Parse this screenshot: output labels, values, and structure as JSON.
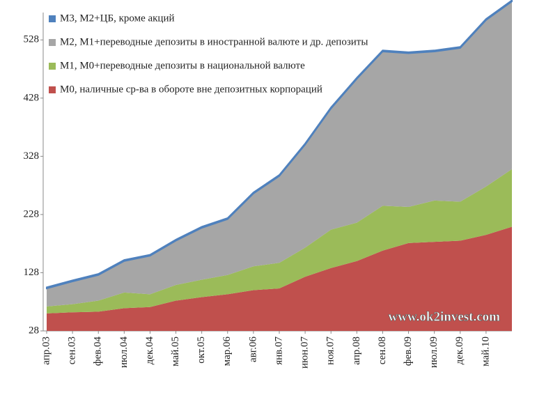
{
  "chart_data": {
    "type": "stacked_area",
    "categories": [
      "апр.03",
      "сен.03",
      "фев.04",
      "июл.04",
      "дек.04",
      "май.05",
      "окт.05",
      "мар.06",
      "авг.06",
      "янв.07",
      "июн.07",
      "ноя.07",
      "апр.08",
      "сен.08",
      "фев.09",
      "июл.09",
      "дек.09",
      "май.10",
      null
    ],
    "series": [
      {
        "name": "М3, М2+ЦБ, кроме акций",
        "color": "#4f81bd",
        "values": [
          2,
          2,
          2,
          2,
          2,
          2,
          2,
          2,
          2,
          2,
          2,
          2,
          2,
          2,
          2,
          2,
          2,
          2,
          2
        ]
      },
      {
        "name": "М2, М1+переводные  депозиты в иностранной валюте и др. депозиты",
        "color": "#a6a6a6",
        "values": [
          31,
          39,
          44,
          54,
          66,
          76,
          89,
          96,
          125,
          149,
          177,
          208,
          247,
          265,
          264,
          256,
          264,
          286,
          288
        ]
      },
      {
        "name": "М1, М0+переводные  депозиты в национальной валюте",
        "color": "#9bbb59",
        "values": [
          12,
          14,
          19,
          27,
          22,
          27,
          30,
          33,
          41,
          44,
          50,
          66,
          66,
          77,
          62,
          71,
          67,
          83,
          99
        ]
      },
      {
        "name": "М0, наличные ср-ва в обороте вне депозитных  корпораций",
        "color": "#c0504d",
        "values": [
          30,
          32,
          33,
          39,
          41,
          52,
          58,
          63,
          70,
          73,
          93,
          108,
          120,
          138,
          151,
          153,
          155,
          165,
          179
        ]
      }
    ],
    "ylim": [
      28,
      575
    ],
    "yticks": [
      28,
      128,
      228,
      328,
      428,
      528
    ],
    "annotation": "www.ok2invest.com",
    "legend": "top-left"
  }
}
